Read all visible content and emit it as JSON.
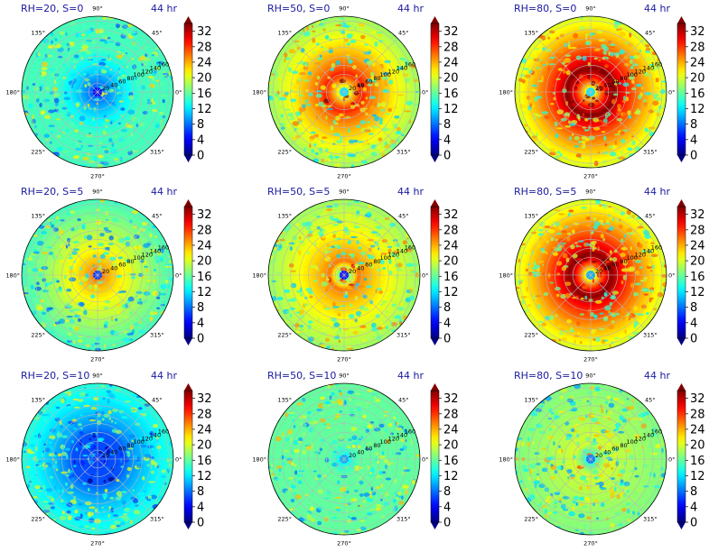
{
  "chart_data": {
    "type": "heatmap",
    "projection": "polar",
    "layout": {
      "rows": 3,
      "cols": 3
    },
    "colormap": "jet",
    "colorbar": {
      "ticks": [
        0,
        4,
        8,
        12,
        16,
        20,
        24,
        28,
        32
      ],
      "range": [
        0,
        34
      ],
      "extend": "both"
    },
    "angle_labels": [
      "90°",
      "45°",
      "0°",
      "315°",
      "270°",
      "225°",
      "180°",
      "135°"
    ],
    "radial_ticks": [
      20,
      40,
      60,
      80,
      100,
      120,
      140,
      160
    ],
    "rmax": 170,
    "panels": [
      {
        "label": "RH=20, S=0",
        "time": "44 hr",
        "show_angle_labels": true,
        "rh": 20,
        "shear": 0,
        "center_value": 4,
        "ring_value": 15,
        "ring_radius": 100,
        "outer_value": 15
      },
      {
        "label": "RH=50, S=0",
        "time": "44 hr",
        "show_angle_labels": true,
        "rh": 50,
        "shear": 0,
        "center_value": 12,
        "ring_value": 29,
        "ring_radius": 45,
        "outer_value": 18
      },
      {
        "label": "RH=80, S=0",
        "time": "44 hr",
        "show_angle_labels": true,
        "rh": 80,
        "shear": 0,
        "center_value": 12,
        "ring_value": 34,
        "ring_radius": 55,
        "outer_value": 20
      },
      {
        "label": "RH=20, S=5",
        "time": "44 hr",
        "show_angle_labels": true,
        "rh": 20,
        "shear": 5,
        "center_value": 6,
        "ring_value": 26,
        "ring_radius": 12,
        "outer_value": 15
      },
      {
        "label": "RH=50, S=5",
        "time": "44 hr",
        "show_angle_labels": true,
        "rh": 50,
        "shear": 5,
        "center_value": 4,
        "ring_value": 26,
        "ring_radius": 35,
        "outer_value": 18
      },
      {
        "label": "RH=80, S=5",
        "time": "44 hr",
        "show_angle_labels": true,
        "rh": 80,
        "shear": 5,
        "center_value": 10,
        "ring_value": 34,
        "ring_radius": 50,
        "outer_value": 20
      },
      {
        "label": "RH=20, S=10",
        "time": "44 hr",
        "show_angle_labels": true,
        "rh": 20,
        "shear": 10,
        "center_value": 6,
        "ring_value": 7,
        "ring_radius": 60,
        "outer_value": 14
      },
      {
        "label": "RH=50, S=10",
        "time": "44 hr",
        "show_angle_labels": true,
        "rh": 50,
        "shear": 10,
        "center_value": 10,
        "ring_value": 16,
        "ring_radius": 40,
        "outer_value": 16
      },
      {
        "label": "RH=80, S=10",
        "time": "44 hr",
        "show_angle_labels": true,
        "rh": 80,
        "shear": 10,
        "center_value": 8,
        "ring_value": 20,
        "ring_radius": 40,
        "outer_value": 17
      }
    ]
  }
}
